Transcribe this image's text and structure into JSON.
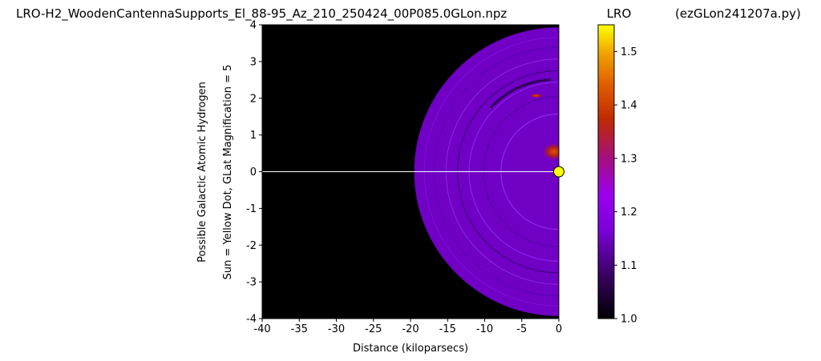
{
  "chart_data": {
    "type": "heatmap",
    "title": "LRO-H2_WoodenCantennaSupports_El_88-95_Az_210_250424_00P085.0GLon.npz",
    "colorbar_title": "LRO",
    "script_note": "(ezGLon241207a.py)",
    "xlabel": "Distance (kiloparsecs)",
    "ylabel_line1": "Possible Galactic Atomic Hydrogen",
    "ylabel_line2": "Sun = Yellow Dot, GLat Magnification = 5",
    "xlim": [
      -40,
      0
    ],
    "ylim": [
      -4,
      4
    ],
    "x_ticks": [
      -40,
      -35,
      -30,
      -25,
      -20,
      -15,
      -10,
      -5,
      0
    ],
    "y_ticks": [
      -4,
      -3,
      -2,
      -1,
      0,
      1,
      2,
      3,
      4
    ],
    "colorbar_range": [
      1.0,
      1.55
    ],
    "colorbar_ticks": [
      1.0,
      1.1,
      1.2,
      1.3,
      1.4,
      1.5
    ],
    "colormap": "gnuplot",
    "sun_marker": {
      "x": 0,
      "y": 0,
      "color": "#ffff00"
    },
    "reference_line_y": 0,
    "background_color": "#000000",
    "emission_outer_radius_kpc": 19.5,
    "emission_base_color": "#6f00c4"
  }
}
